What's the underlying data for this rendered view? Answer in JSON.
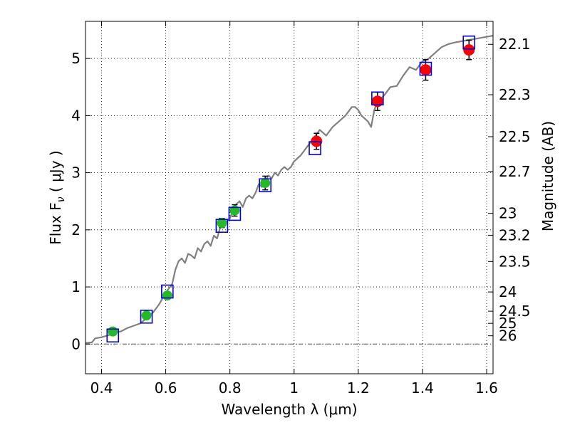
{
  "chart_data": {
    "type": "scatter",
    "xlabel": "Wavelength  λ (μm)",
    "ylabel": "Flux  F_ν  ( μJy )",
    "y2label": "Magnitude (AB)",
    "xlim": [
      0.35,
      1.62
    ],
    "ylim": [
      -0.52,
      5.65
    ],
    "x_ticks": [
      0.4,
      0.6,
      0.8,
      1.0,
      1.2,
      1.4,
      1.6
    ],
    "x_tick_labels": [
      "0.4",
      "0.6",
      "0.8",
      "1",
      "1.2",
      "1.4",
      "1.6"
    ],
    "y_ticks": [
      0,
      1,
      2,
      3,
      4,
      5
    ],
    "y_tick_labels": [
      "0",
      "1",
      "2",
      "3",
      "4",
      "5"
    ],
    "mag_ticks": [
      22.1,
      22.3,
      22.5,
      22.7,
      23,
      23.2,
      23.5,
      24,
      24.5,
      25,
      26
    ],
    "mag_tick_labels": [
      "22.1",
      "22.3",
      "22.5",
      "22.7",
      "23",
      "23.2",
      "23.5",
      "24",
      "24.5",
      "25",
      "26"
    ],
    "grid": true,
    "colors": {
      "model": "#808080",
      "green": "#22bb22",
      "red": "#ff0000",
      "box": "#0000dd",
      "zero_line": "#555555"
    },
    "series": [
      {
        "name": "model spectrum",
        "style": "line",
        "x": [
          0.35,
          0.37,
          0.38,
          0.4,
          0.42,
          0.44,
          0.46,
          0.48,
          0.5,
          0.52,
          0.54,
          0.56,
          0.58,
          0.6,
          0.62,
          0.63,
          0.64,
          0.65,
          0.66,
          0.67,
          0.68,
          0.69,
          0.7,
          0.71,
          0.72,
          0.73,
          0.74,
          0.75,
          0.76,
          0.77,
          0.78,
          0.79,
          0.8,
          0.81,
          0.82,
          0.83,
          0.84,
          0.85,
          0.86,
          0.87,
          0.88,
          0.89,
          0.9,
          0.91,
          0.92,
          0.93,
          0.94,
          0.95,
          0.96,
          0.97,
          0.98,
          0.99,
          1.0,
          1.02,
          1.04,
          1.06,
          1.08,
          1.1,
          1.12,
          1.14,
          1.16,
          1.18,
          1.19,
          1.2,
          1.21,
          1.22,
          1.23,
          1.24,
          1.25,
          1.26,
          1.28,
          1.3,
          1.32,
          1.34,
          1.36,
          1.38,
          1.4,
          1.42,
          1.44,
          1.46,
          1.48,
          1.5,
          1.52,
          1.54,
          1.56,
          1.58,
          1.6,
          1.62
        ],
        "y": [
          0.02,
          0.03,
          0.1,
          0.12,
          0.15,
          0.2,
          0.22,
          0.28,
          0.32,
          0.36,
          0.45,
          0.55,
          0.7,
          0.9,
          1.05,
          1.3,
          1.45,
          1.5,
          1.42,
          1.58,
          1.55,
          1.5,
          1.68,
          1.62,
          1.75,
          1.8,
          1.72,
          1.9,
          1.85,
          2.05,
          2.1,
          2.15,
          2.2,
          2.35,
          2.45,
          2.5,
          2.4,
          2.55,
          2.6,
          2.55,
          2.65,
          2.8,
          2.75,
          2.85,
          2.95,
          2.9,
          3.0,
          2.95,
          3.05,
          3.1,
          3.05,
          3.1,
          3.2,
          3.3,
          3.45,
          3.6,
          3.75,
          3.65,
          3.8,
          3.9,
          4.0,
          4.15,
          4.15,
          4.1,
          4.0,
          3.95,
          3.9,
          3.8,
          4.1,
          4.25,
          4.35,
          4.5,
          4.52,
          4.7,
          4.85,
          4.8,
          4.95,
          5.0,
          5.1,
          5.2,
          5.25,
          5.28,
          5.3,
          5.32,
          5.34,
          5.36,
          5.38,
          5.4
        ]
      },
      {
        "name": "observed (optical)",
        "style": "points",
        "color": "green",
        "x": [
          0.435,
          0.54,
          0.605,
          0.775,
          0.815,
          0.91
        ],
        "y": [
          0.22,
          0.5,
          0.85,
          2.12,
          2.34,
          2.82
        ],
        "yerr": [
          0.06,
          0.06,
          0.06,
          0.08,
          0.1,
          0.12
        ]
      },
      {
        "name": "observed (NIR)",
        "style": "points",
        "color": "red",
        "x": [
          1.07,
          1.26,
          1.41,
          1.545
        ],
        "y": [
          3.55,
          4.25,
          4.8,
          5.15
        ],
        "yerr": [
          0.14,
          0.16,
          0.18,
          0.17
        ]
      },
      {
        "name": "model band fluxes",
        "style": "boxes",
        "color": "box",
        "x": [
          0.435,
          0.54,
          0.605,
          0.775,
          0.815,
          0.91,
          1.065,
          1.26,
          1.41,
          1.545
        ],
        "y": [
          0.15,
          0.48,
          0.92,
          2.07,
          2.28,
          2.78,
          3.43,
          4.3,
          4.82,
          5.28
        ]
      }
    ]
  }
}
